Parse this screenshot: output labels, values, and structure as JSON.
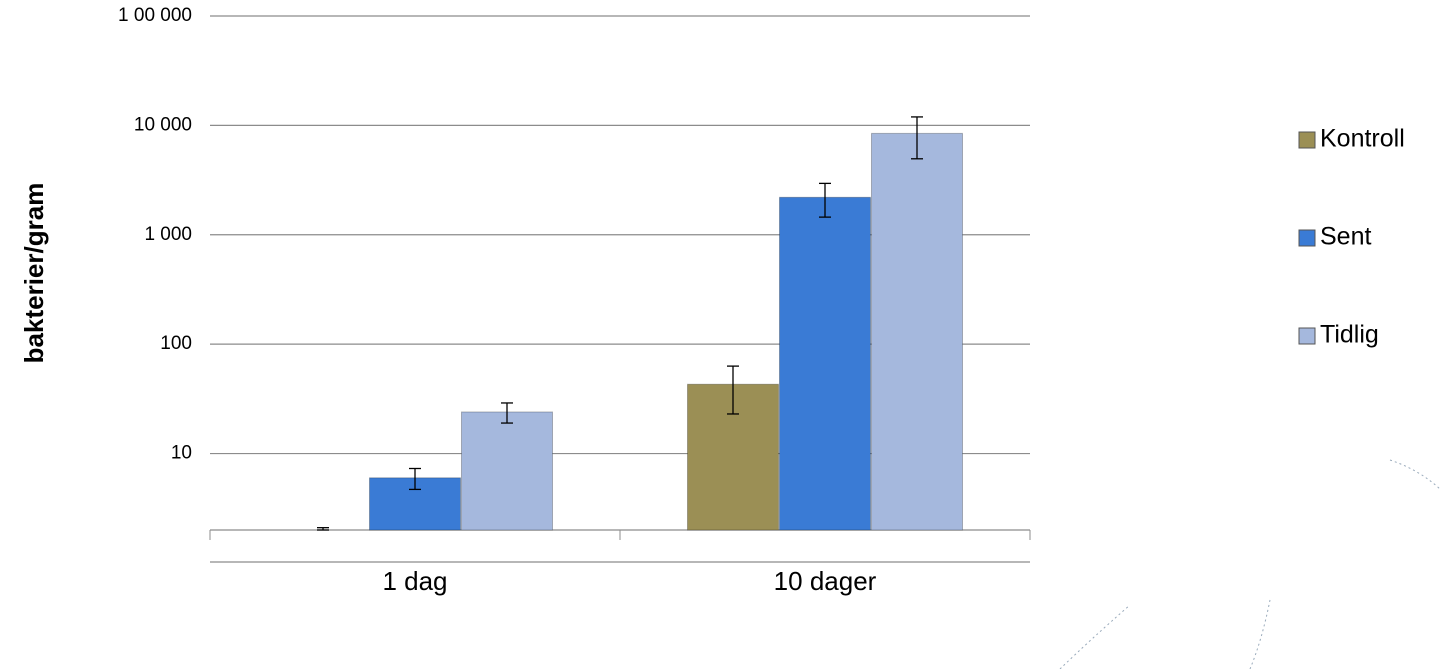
{
  "chart_data": {
    "type": "bar",
    "y_label": "bakterier/gram",
    "categories": [
      "1 dag",
      "10 dager"
    ],
    "series": [
      {
        "name": "Kontroll",
        "color": "#9b8f55",
        "values": [
          2,
          43
        ],
        "errors": [
          0.1,
          20
        ]
      },
      {
        "name": "Sent",
        "color": "#3a7bd5",
        "values": [
          6,
          2200
        ],
        "errors": [
          1.3,
          750
        ]
      },
      {
        "name": "Tidlig",
        "color": "#a5b8dd",
        "values": [
          24,
          8450
        ],
        "errors": [
          5,
          3500
        ]
      }
    ],
    "log_scale": true,
    "ylim": [
      2,
      100000
    ],
    "yticks": [
      10,
      100,
      {
        "value": 1000,
        "label": "1 000"
      },
      {
        "value": 10000,
        "label": "10 000"
      },
      {
        "value": 100000,
        "label": "1 00 000"
      }
    ],
    "grid": true,
    "legend": "right"
  }
}
